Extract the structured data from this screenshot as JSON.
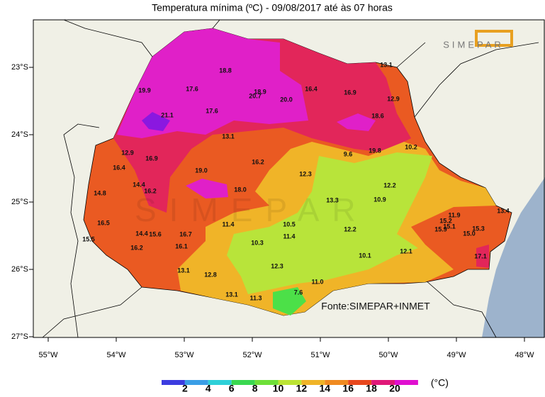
{
  "title": "Temperatura mínima (ºC) - 09/08/2017 até às 07 horas",
  "logo": "SIMEPAR",
  "source": "Fonte:SIMEPAR+INMET",
  "lat_labels": [
    "23°S",
    "24°S",
    "25°S",
    "26°S",
    "27°S"
  ],
  "lon_labels": [
    "55°W",
    "54°W",
    "53°W",
    "52°W",
    "51°W",
    "50°W",
    "49°W",
    "48°W"
  ],
  "colorbar": {
    "labels": [
      "2",
      "4",
      "6",
      "8",
      "10",
      "12",
      "14",
      "16",
      "18",
      "20"
    ],
    "unit": "(°C)"
  },
  "stations": [
    "18.8",
    "19.9",
    "17.6",
    "18.9",
    "20.7",
    "20.0",
    "16.4",
    "16.9",
    "13.1",
    "12.9",
    "21.1",
    "17.6",
    "18.6",
    "13.1",
    "19.8",
    "10.2",
    "9.6",
    "12.9",
    "16.9",
    "16.2",
    "16.4",
    "19.0",
    "12.3",
    "14.4",
    "16.2",
    "18.0",
    "12.2",
    "14.8",
    "13.3",
    "10.9",
    "11.9",
    "13.4",
    "15.2",
    "16.5",
    "11.4",
    "10.5",
    "12.2",
    "15.1",
    "15.9",
    "15.0",
    "15.3",
    "15.5",
    "14.4",
    "15.6",
    "16.7",
    "11.4",
    "10.3",
    "16.2",
    "16.1",
    "12.1",
    "10.1",
    "17.1",
    "12.3",
    "13.1",
    "12.8",
    "11.0",
    "13.1",
    "11.3",
    "7.6"
  ]
}
